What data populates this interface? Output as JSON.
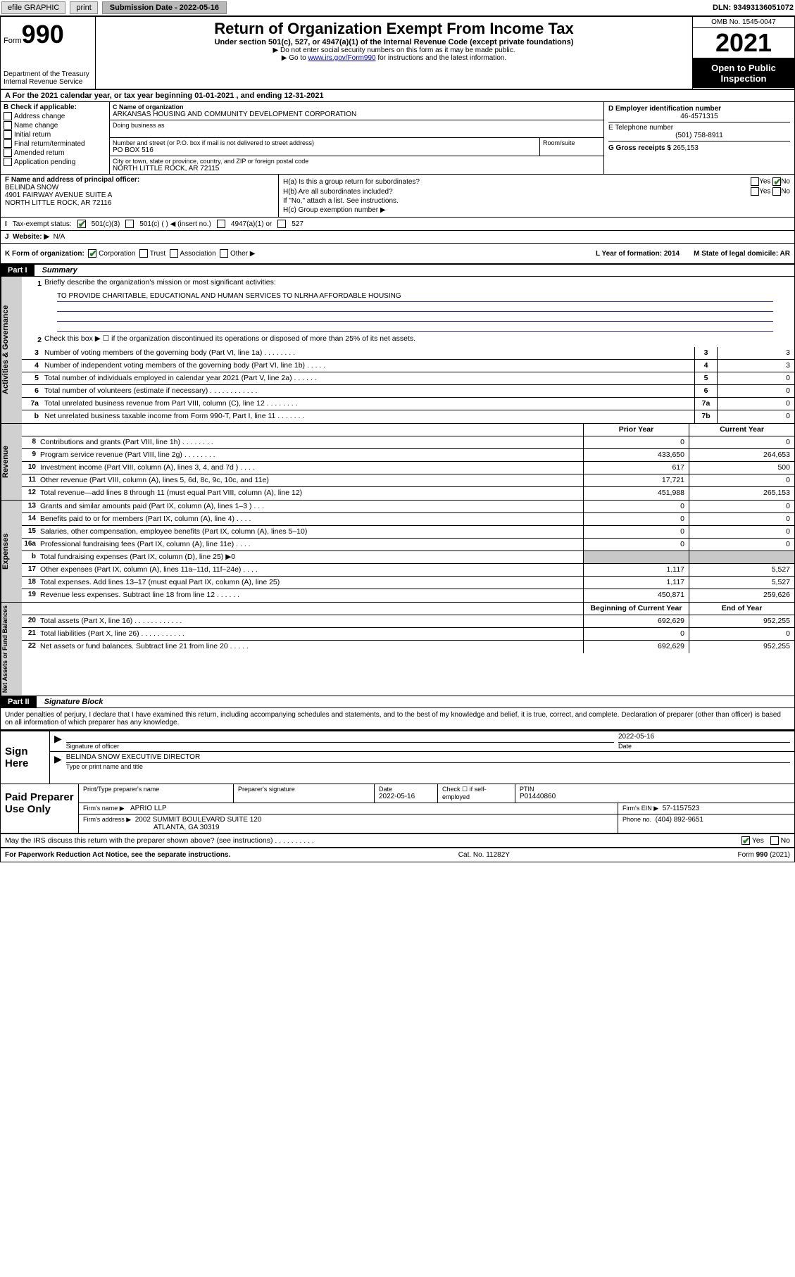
{
  "toolbar": {
    "efile": "efile GRAPHIC",
    "print": "print",
    "subdate_label": "Submission Date - 2022-05-16",
    "dln": "DLN: 93493136051072"
  },
  "header": {
    "form_prefix": "Form",
    "form_number": "990",
    "dept": "Department of the Treasury",
    "irs": "Internal Revenue Service",
    "title": "Return of Organization Exempt From Income Tax",
    "subtitle": "Under section 501(c), 527, or 4947(a)(1) of the Internal Revenue Code (except private foundations)",
    "note1": "▶ Do not enter social security numbers on this form as it may be made public.",
    "note2_pre": "▶ Go to ",
    "note2_link": "www.irs.gov/Form990",
    "note2_post": " for instructions and the latest information.",
    "omb": "OMB No. 1545-0047",
    "year": "2021",
    "open": "Open to Public Inspection"
  },
  "A": {
    "text": "A For the 2021 calendar year, or tax year beginning 01-01-2021   , and ending 12-31-2021"
  },
  "B": {
    "label": "B Check if applicable:",
    "items": [
      "Address change",
      "Name change",
      "Initial return",
      "Final return/terminated",
      "Amended return",
      "Application pending"
    ]
  },
  "C": {
    "name_label": "C Name of organization",
    "name": "ARKANSAS HOUSING AND COMMUNITY DEVELOPMENT CORPORATION",
    "dba_label": "Doing business as",
    "addr_label": "Number and street (or P.O. box if mail is not delivered to street address)",
    "room_label": "Room/suite",
    "addr": "PO BOX 516",
    "city_label": "City or town, state or province, country, and ZIP or foreign postal code",
    "city": "NORTH LITTLE ROCK, AR  72115"
  },
  "D": {
    "label": "D Employer identification number",
    "value": "46-4571315"
  },
  "E": {
    "label": "E Telephone number",
    "value": "(501) 758-8911"
  },
  "G": {
    "label": "G Gross receipts $",
    "value": "265,153"
  },
  "F": {
    "label": "F Name and address of principal officer:",
    "name": "BELINDA SNOW",
    "addr1": "4901 FAIRWAY AVENUE SUITE A",
    "addr2": "NORTH LITTLE ROCK, AR  72116"
  },
  "H": {
    "a": "H(a)  Is this a group return for subordinates?",
    "b": "H(b)  Are all subordinates included?",
    "bnote": "If \"No,\" attach a list. See instructions.",
    "c": "H(c)  Group exemption number ▶",
    "yes": "Yes",
    "no": "No"
  },
  "I": {
    "label": "Tax-exempt status:",
    "o1": "501(c)(3)",
    "o2": "501(c) (  ) ◀ (insert no.)",
    "o3": "4947(a)(1) or",
    "o4": "527"
  },
  "J": {
    "label": "Website: ▶",
    "value": "N/A"
  },
  "K": {
    "label": "K Form of organization:",
    "o1": "Corporation",
    "o2": "Trust",
    "o3": "Association",
    "o4": "Other ▶",
    "L": "L Year of formation: 2014",
    "M": "M State of legal domicile: AR"
  },
  "part1": {
    "hdr": "Part I",
    "title": "Summary",
    "l1": "Briefly describe the organization's mission or most significant activities:",
    "mission": "TO PROVIDE CHARITABLE, EDUCATIONAL AND HUMAN SERVICES TO NLRHA AFFORDABLE HOUSING",
    "l2": "Check this box ▶ ☐  if the organization discontinued its operations or disposed of more than 25% of its net assets.",
    "rows_gov": [
      {
        "n": "3",
        "t": "Number of voting members of the governing body (Part VI, line 1a)  .   .   .   .   .   .   .   .",
        "box": "3",
        "v": "3"
      },
      {
        "n": "4",
        "t": "Number of independent voting members of the governing body (Part VI, line 1b)  .   .   .   .   .",
        "box": "4",
        "v": "3"
      },
      {
        "n": "5",
        "t": "Total number of individuals employed in calendar year 2021 (Part V, line 2a)  .   .   .   .   .   .",
        "box": "5",
        "v": "0"
      },
      {
        "n": "6",
        "t": "Total number of volunteers (estimate if necessary)  .   .   .   .   .   .   .   .   .   .   .   .",
        "box": "6",
        "v": "0"
      },
      {
        "n": "7a",
        "t": "Total unrelated business revenue from Part VIII, column (C), line 12  .   .   .   .   .   .   .   .",
        "box": "7a",
        "v": "0"
      },
      {
        "n": "b",
        "t": "Net unrelated business taxable income from Form 990-T, Part I, line 11  .   .   .   .   .   .   .",
        "box": "7b",
        "v": "0"
      }
    ],
    "col_py": "Prior Year",
    "col_cy": "Current Year",
    "rows_rev": [
      {
        "n": "8",
        "t": "Contributions and grants (Part VIII, line 1h)  .   .   .   .   .   .   .   .",
        "py": "0",
        "cy": "0"
      },
      {
        "n": "9",
        "t": "Program service revenue (Part VIII, line 2g)  .   .   .   .   .   .   .   .",
        "py": "433,650",
        "cy": "264,653"
      },
      {
        "n": "10",
        "t": "Investment income (Part VIII, column (A), lines 3, 4, and 7d )  .   .   .   .",
        "py": "617",
        "cy": "500"
      },
      {
        "n": "11",
        "t": "Other revenue (Part VIII, column (A), lines 5, 6d, 8c, 9c, 10c, and 11e)",
        "py": "17,721",
        "cy": "0"
      },
      {
        "n": "12",
        "t": "Total revenue—add lines 8 through 11 (must equal Part VIII, column (A), line 12)",
        "py": "451,988",
        "cy": "265,153"
      }
    ],
    "rows_exp": [
      {
        "n": "13",
        "t": "Grants and similar amounts paid (Part IX, column (A), lines 1–3 )  .   .   .",
        "py": "0",
        "cy": "0"
      },
      {
        "n": "14",
        "t": "Benefits paid to or for members (Part IX, column (A), line 4)  .   .   .   .",
        "py": "0",
        "cy": "0"
      },
      {
        "n": "15",
        "t": "Salaries, other compensation, employee benefits (Part IX, column (A), lines 5–10)",
        "py": "0",
        "cy": "0"
      },
      {
        "n": "16a",
        "t": "Professional fundraising fees (Part IX, column (A), line 11e)  .   .   .   .",
        "py": "0",
        "cy": "0"
      },
      {
        "n": "b",
        "t": "Total fundraising expenses (Part IX, column (D), line 25) ▶0",
        "py": "",
        "cy": "",
        "gray": true
      },
      {
        "n": "17",
        "t": "Other expenses (Part IX, column (A), lines 11a–11d, 11f–24e)  .   .   .   .",
        "py": "1,117",
        "cy": "5,527"
      },
      {
        "n": "18",
        "t": "Total expenses. Add lines 13–17 (must equal Part IX, column (A), line 25)",
        "py": "1,117",
        "cy": "5,527"
      },
      {
        "n": "19",
        "t": "Revenue less expenses. Subtract line 18 from line 12  .   .   .   .   .   .",
        "py": "450,871",
        "cy": "259,626"
      }
    ],
    "col_by": "Beginning of Current Year",
    "col_ey": "End of Year",
    "rows_net": [
      {
        "n": "20",
        "t": "Total assets (Part X, line 16)  .   .   .   .   .   .   .   .   .   .   .   .",
        "py": "692,629",
        "cy": "952,255"
      },
      {
        "n": "21",
        "t": "Total liabilities (Part X, line 26)  .   .   .   .   .   .   .   .   .   .   .",
        "py": "0",
        "cy": "0"
      },
      {
        "n": "22",
        "t": "Net assets or fund balances. Subtract line 21 from line 20  .   .   .   .   .",
        "py": "692,629",
        "cy": "952,255"
      }
    ],
    "vlab_gov": "Activities & Governance",
    "vlab_rev": "Revenue",
    "vlab_exp": "Expenses",
    "vlab_net": "Net Assets or Fund Balances"
  },
  "part2": {
    "hdr": "Part II",
    "title": "Signature Block",
    "penalty": "Under penalties of perjury, I declare that I have examined this return, including accompanying schedules and statements, and to the best of my knowledge and belief, it is true, correct, and complete. Declaration of preparer (other than officer) is based on all information of which preparer has any knowledge.",
    "sign": "Sign Here",
    "sig_officer": "Signature of officer",
    "sig_date": "Date",
    "sig_date_v": "2022-05-16",
    "sig_name": "BELINDA SNOW  EXECUTIVE DIRECTOR",
    "sig_name_lbl": "Type or print name and title",
    "paid": "Paid Preparer Use Only",
    "p_name_lbl": "Print/Type preparer's name",
    "p_sig_lbl": "Preparer's signature",
    "p_date_lbl": "Date",
    "p_date": "2022-05-16",
    "p_check": "Check ☐ if self-employed",
    "p_ptin_lbl": "PTIN",
    "p_ptin": "P01440860",
    "firm_name_lbl": "Firm's name    ▶",
    "firm_name": "APRIO LLP",
    "firm_ein_lbl": "Firm's EIN ▶",
    "firm_ein": "57-1157523",
    "firm_addr_lbl": "Firm's address ▶",
    "firm_addr1": "2002 SUMMIT BOULEVARD SUITE 120",
    "firm_addr2": "ATLANTA, GA  30319",
    "phone_lbl": "Phone no.",
    "phone": "(404) 892-9651",
    "discuss": "May the IRS discuss this return with the preparer shown above? (see instructions)  .   .   .   .   .   .   .   .   .   .",
    "yes": "Yes",
    "no": "No"
  },
  "footer": {
    "pra": "For Paperwork Reduction Act Notice, see the separate instructions.",
    "cat": "Cat. No. 11282Y",
    "form": "Form 990 (2021)"
  }
}
